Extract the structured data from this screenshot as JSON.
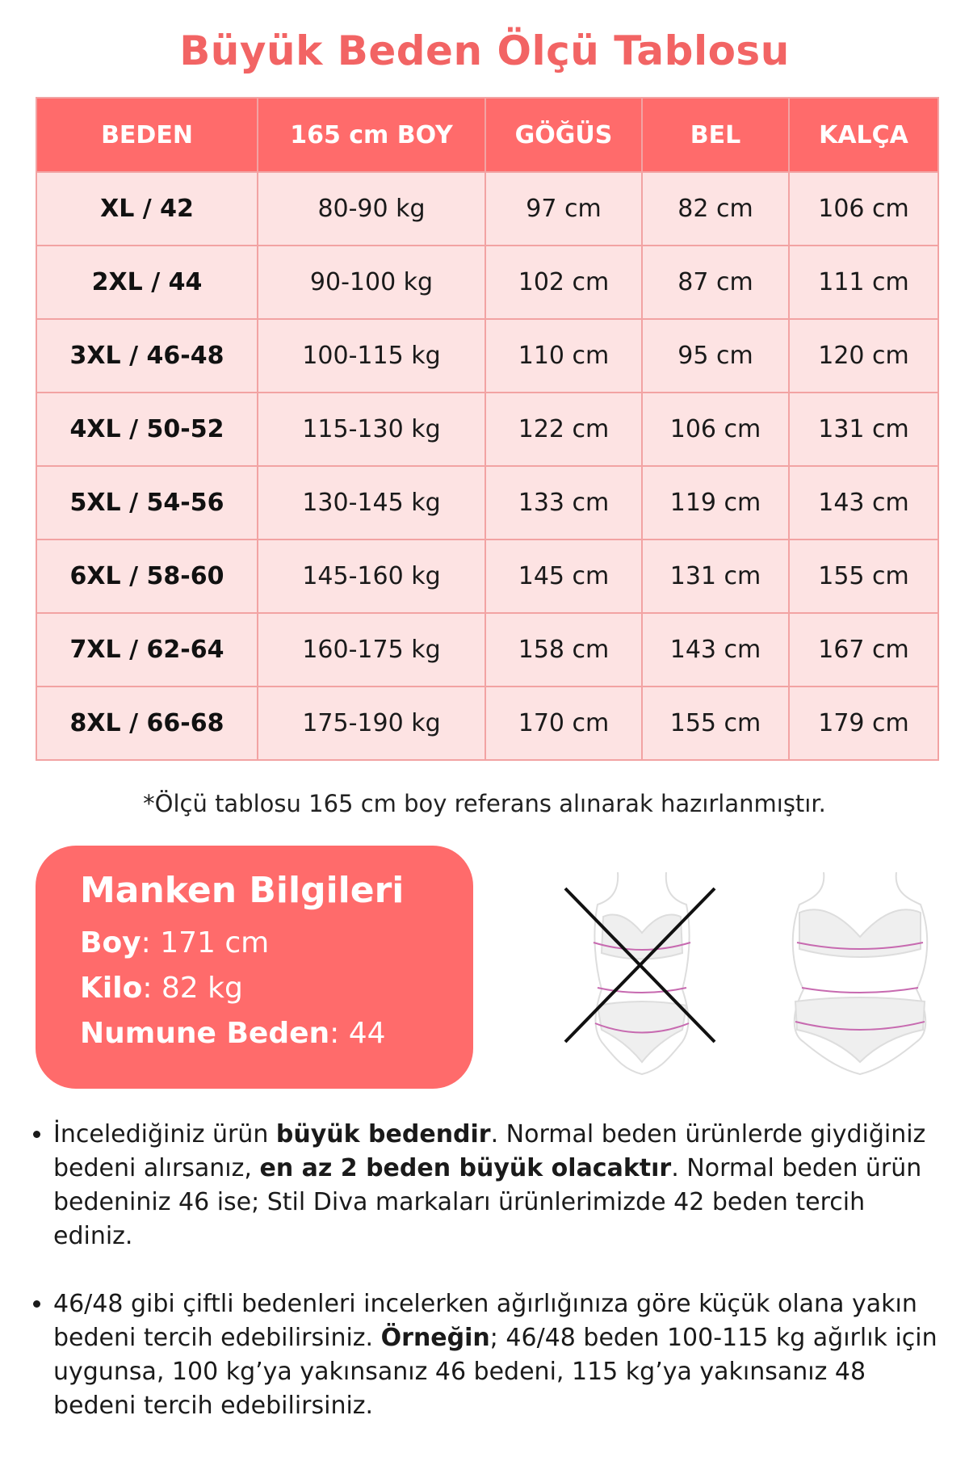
{
  "title": "Büyük Beden Ölçü Tablosu",
  "table": {
    "headers": [
      "BEDEN",
      "165 cm BOY",
      "GÖĞÜS",
      "BEL",
      "KALÇA"
    ],
    "rows": [
      [
        "XL / 42",
        "80-90 kg",
        "97 cm",
        "82 cm",
        "106 cm"
      ],
      [
        "2XL / 44",
        "90-100 kg",
        "102 cm",
        "87 cm",
        "111 cm"
      ],
      [
        "3XL / 46-48",
        "100-115 kg",
        "110 cm",
        "95 cm",
        "120 cm"
      ],
      [
        "4XL / 50-52",
        "115-130 kg",
        "122 cm",
        "106 cm",
        "131 cm"
      ],
      [
        "5XL / 54-56",
        "130-145 kg",
        "133 cm",
        "119 cm",
        "143 cm"
      ],
      [
        "6XL / 58-60",
        "145-160 kg",
        "145 cm",
        "131 cm",
        "155 cm"
      ],
      [
        "7XL / 62-64",
        "160-175 kg",
        "158 cm",
        "143 cm",
        "167 cm"
      ],
      [
        "8XL / 66-68",
        "175-190 kg",
        "170 cm",
        "155 cm",
        "179 cm"
      ]
    ]
  },
  "note": "*Ölçü tablosu 165 cm boy referans alınarak hazırlanmıştır.",
  "manken": {
    "title": "Manken Bilgileri",
    "boy_label": "Boy",
    "boy_value": ": 171 cm",
    "kilo_label": "Kilo",
    "kilo_value": ": 82 kg",
    "beden_label": "Numune Beden",
    "beden_value": ": 44"
  },
  "bullets": [
    {
      "p1": "İncelediğiniz ürün ",
      "b1": "büyük bedendir",
      "p2": ". Normal beden ürünlerde giydiğiniz bedeni alırsanız, ",
      "b2": "en az 2 beden büyük olacaktır",
      "p3": ". Normal beden ürün bedeniniz 46 ise; Stil Diva markaları ürünlerimizde 42 beden tercih ediniz."
    },
    {
      "p1": "46/48 gibi çiftli bedenleri incelerken ağırlığınıza göre küçük olana yakın bedeni tercih edebilirsiniz. ",
      "b1": "Örneğin",
      "p2": "; 46/48 beden 100-115 kg ağırlık için uygunsa, 100 kg’ya yakınsanız 46 bedeni, 115 kg’ya yakınsanız 48 bedeni tercih edebilirsiniz."
    }
  ],
  "colors": {
    "accent": "#ff6b6b",
    "title": "#f26464",
    "row_bg": "#fde3e3",
    "border": "#f2a3a3"
  },
  "icons": [
    "body-figure-wrong-icon",
    "body-figure-correct-icon"
  ]
}
